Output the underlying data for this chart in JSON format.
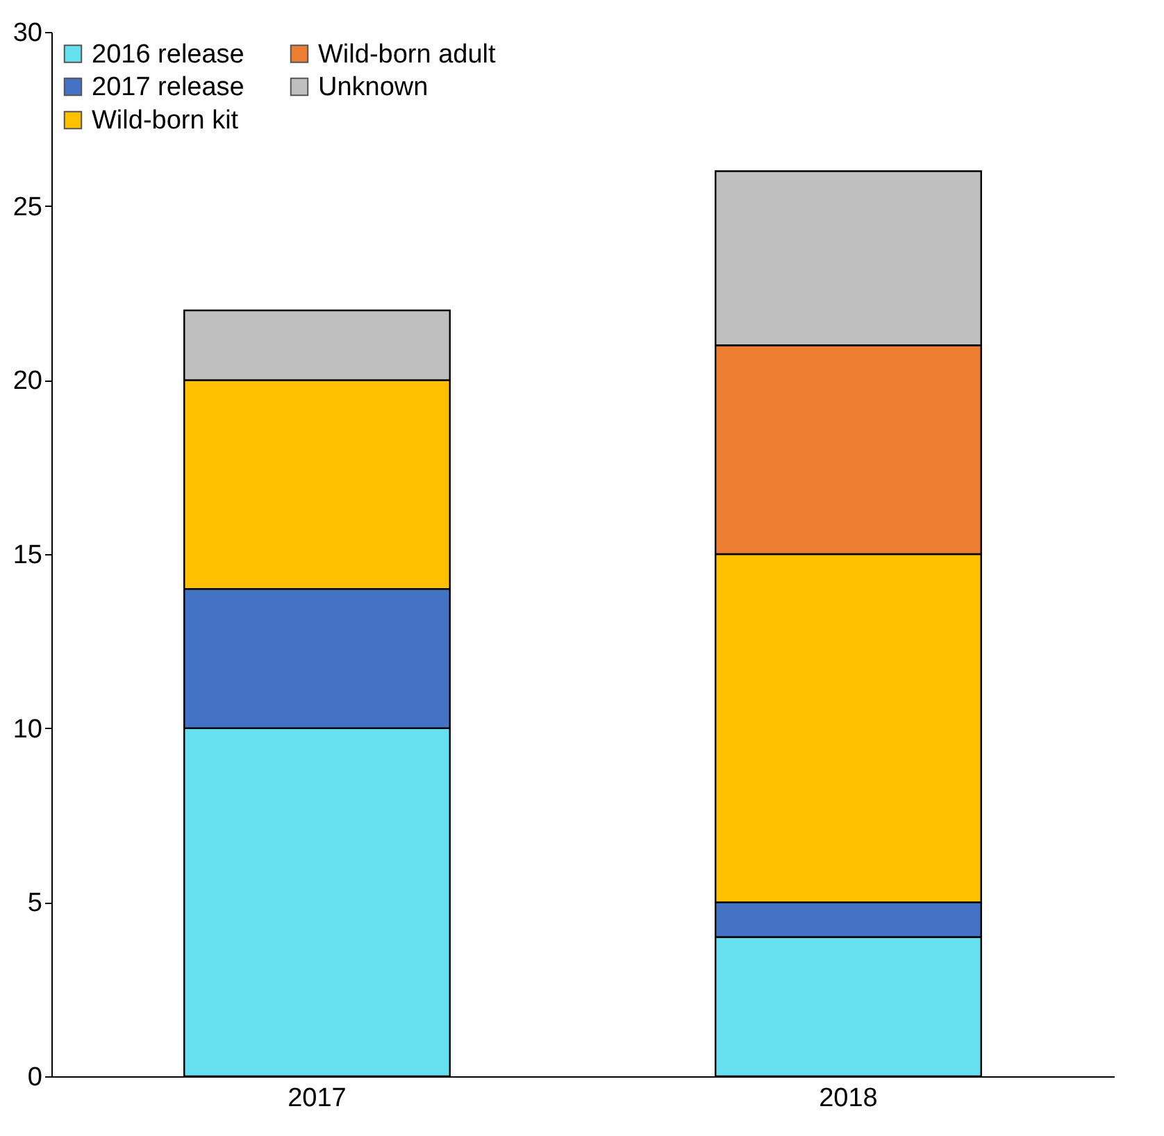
{
  "chart_data": {
    "type": "bar",
    "stacked": true,
    "categories": [
      "2017",
      "2018"
    ],
    "series": [
      {
        "name": "2016 release",
        "color": "#66e0ee",
        "values": [
          10,
          4
        ]
      },
      {
        "name": "2017 release",
        "color": "#4472c4",
        "values": [
          4,
          1
        ]
      },
      {
        "name": "Wild-born kit",
        "color": "#ffc000",
        "values": [
          6,
          10
        ]
      },
      {
        "name": "Wild-born adult",
        "color": "#ed7d31",
        "values": [
          0,
          6
        ]
      },
      {
        "name": "Unknown",
        "color": "#bfbfbf",
        "values": [
          2,
          5
        ]
      }
    ],
    "ylim": [
      0,
      30
    ],
    "yticks": [
      0,
      5,
      10,
      15,
      20,
      25,
      30
    ],
    "grid": false,
    "legend": "top left"
  }
}
